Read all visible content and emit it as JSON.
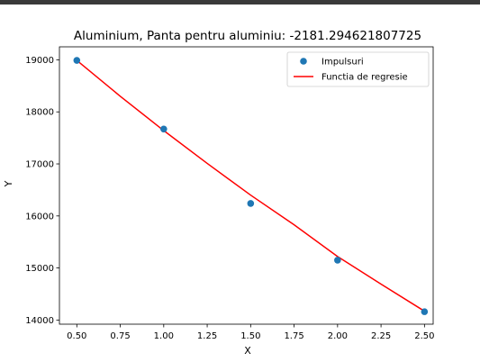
{
  "chart_data": {
    "type": "scatter",
    "title": "Aluminium, Panta pentru aluminiu: -2181.294621807725",
    "xlabel": "X",
    "ylabel": "Y",
    "xlim": [
      0.4,
      2.55
    ],
    "ylim": [
      13920,
      19250
    ],
    "grid": false,
    "legend_position": "top-right",
    "xticks": [
      "0.50",
      "0.75",
      "1.00",
      "1.25",
      "1.50",
      "1.75",
      "2.00",
      "2.25",
      "2.50"
    ],
    "yticks": [
      "14000",
      "15000",
      "16000",
      "17000",
      "18000",
      "19000"
    ],
    "series": [
      {
        "name": "Impulsuri",
        "kind": "scatter",
        "color": "#1f77b4",
        "x": [
          0.5,
          1.0,
          1.5,
          2.0,
          2.5
        ],
        "y": [
          18990,
          17670,
          16240,
          15150,
          14160
        ]
      },
      {
        "name": "Functia de regresie",
        "kind": "line",
        "color": "#ff0000",
        "x": [
          0.5,
          0.75,
          1.0,
          1.25,
          1.5,
          1.75,
          2.0,
          2.25,
          2.5
        ],
        "y": [
          18990,
          18300,
          17640,
          17010,
          16400,
          15830,
          15220,
          14690,
          14170
        ]
      }
    ]
  }
}
